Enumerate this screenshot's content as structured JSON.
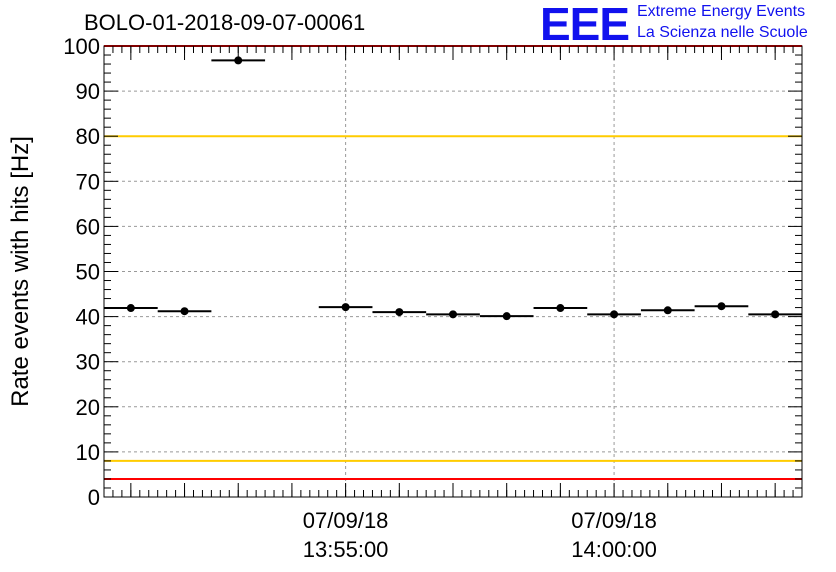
{
  "logo": {
    "mark": "EEE",
    "line1": "Extreme Energy Events",
    "line2": "La Scienza nelle Scuole"
  },
  "chart_data": {
    "type": "scatter",
    "title": "BOLO-01-2018-09-07-00061",
    "xlabel": "",
    "ylabel": "Rate events with hits [Hz]",
    "ylim": [
      0,
      100
    ],
    "xlim": [
      "07/09/18 13:50:30",
      "07/09/18 14:03:30"
    ],
    "yticks": [
      0,
      10,
      20,
      30,
      40,
      50,
      60,
      70,
      80,
      90,
      100
    ],
    "xticks": [
      {
        "date": "07/09/18",
        "time": "13:55:00"
      },
      {
        "date": "07/09/18",
        "time": "14:00:00"
      }
    ],
    "grid": true,
    "bin_width_seconds": 60,
    "series": [
      {
        "points": [
          {
            "x": "07/09/18 13:51:00",
            "y": 41.9
          },
          {
            "x": "07/09/18 13:52:00",
            "y": 41.2
          },
          {
            "x": "07/09/18 13:53:00",
            "y": 96.8
          },
          {
            "x": "07/09/18 13:55:00",
            "y": 42.1
          },
          {
            "x": "07/09/18 13:56:00",
            "y": 41.0
          },
          {
            "x": "07/09/18 13:57:00",
            "y": 40.5
          },
          {
            "x": "07/09/18 13:58:00",
            "y": 40.1
          },
          {
            "x": "07/09/18 13:59:00",
            "y": 41.9
          },
          {
            "x": "07/09/18 14:00:00",
            "y": 40.5
          },
          {
            "x": "07/09/18 14:01:00",
            "y": 41.4
          },
          {
            "x": "07/09/18 14:02:00",
            "y": 42.3
          },
          {
            "x": "07/09/18 14:03:00",
            "y": 40.5
          }
        ]
      }
    ],
    "reference_lines": [
      {
        "y": 100,
        "color": "#ff0000"
      },
      {
        "y": 80,
        "color": "#ffcc00"
      },
      {
        "y": 8,
        "color": "#ffcc00"
      },
      {
        "y": 4,
        "color": "#ff0000"
      }
    ]
  }
}
